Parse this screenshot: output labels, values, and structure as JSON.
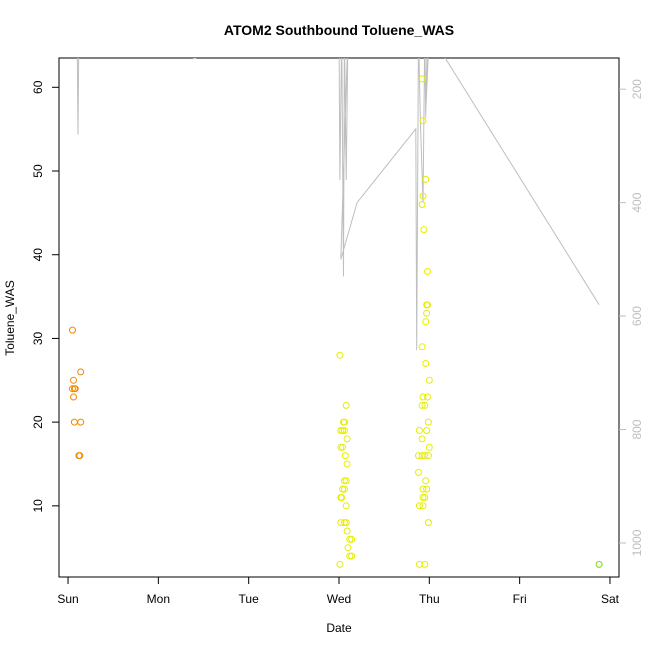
{
  "chart_data": {
    "type": "scatter",
    "title": "ATOM2 Southbound Toluene_WAS",
    "xlabel": "Date",
    "ylabel": "Toluene_WAS",
    "x_ticks": [
      "Sun",
      "Mon",
      "Tue",
      "Wed",
      "Thu",
      "Fri",
      "Sat"
    ],
    "xlim": [
      -0.1,
      6.1
    ],
    "ylim": [
      1.5,
      63.5
    ],
    "y_ticks": [
      10,
      20,
      30,
      40,
      50,
      60
    ],
    "y2_ticks": [
      200,
      400,
      600,
      800,
      1000
    ],
    "y2lim": [
      1060,
      145
    ],
    "colors": {
      "sun": "#F08A00",
      "wed_thu": "#E6EE00",
      "sat": "#76E000",
      "trace": "#BEBEBE",
      "axis": "#000000",
      "y2_text": "#BEBEBE"
    },
    "series": [
      {
        "color_key": "sun",
        "points": [
          [
            0.05,
            31
          ],
          [
            0.06,
            25
          ],
          [
            0.07,
            24
          ],
          [
            0.05,
            24
          ],
          [
            0.08,
            24
          ],
          [
            0.06,
            23
          ],
          [
            0.07,
            20
          ],
          [
            0.14,
            20
          ],
          [
            0.12,
            16
          ],
          [
            0.13,
            16
          ],
          [
            0.14,
            26
          ]
        ]
      },
      {
        "color_key": "wed_thu",
        "points": [
          [
            3.01,
            28
          ],
          [
            3.02,
            19
          ],
          [
            3.04,
            19
          ],
          [
            3.06,
            19
          ],
          [
            3.05,
            20
          ],
          [
            3.06,
            20
          ],
          [
            3.02,
            17
          ],
          [
            3.04,
            17
          ],
          [
            3.07,
            16
          ],
          [
            3.09,
            15
          ],
          [
            3.06,
            13
          ],
          [
            3.08,
            13
          ],
          [
            3.04,
            12
          ],
          [
            3.06,
            12
          ],
          [
            3.02,
            11
          ],
          [
            3.03,
            11
          ],
          [
            3.08,
            10
          ],
          [
            3.02,
            8
          ],
          [
            3.06,
            8
          ],
          [
            3.08,
            8
          ],
          [
            3.09,
            7
          ],
          [
            3.12,
            6
          ],
          [
            3.14,
            6
          ],
          [
            3.1,
            5
          ],
          [
            3.12,
            4
          ],
          [
            3.14,
            4
          ],
          [
            3.01,
            3
          ],
          [
            3.08,
            22
          ],
          [
            3.09,
            18
          ],
          [
            3.92,
            61
          ],
          [
            3.93,
            56
          ],
          [
            3.96,
            49
          ],
          [
            3.93,
            47
          ],
          [
            3.92,
            46
          ],
          [
            3.94,
            43
          ],
          [
            3.98,
            38
          ],
          [
            3.98,
            34
          ],
          [
            3.97,
            34
          ],
          [
            3.97,
            33
          ],
          [
            3.96,
            32
          ],
          [
            3.92,
            29
          ],
          [
            3.96,
            27
          ],
          [
            4.0,
            25
          ],
          [
            3.93,
            23
          ],
          [
            3.98,
            23
          ],
          [
            3.92,
            22
          ],
          [
            3.95,
            22
          ],
          [
            3.99,
            20
          ],
          [
            3.89,
            19
          ],
          [
            3.97,
            19
          ],
          [
            3.92,
            18
          ],
          [
            4.0,
            17
          ],
          [
            3.88,
            16
          ],
          [
            3.92,
            16
          ],
          [
            3.95,
            16
          ],
          [
            3.99,
            16
          ],
          [
            3.88,
            14
          ],
          [
            3.96,
            13
          ],
          [
            3.93,
            12
          ],
          [
            3.97,
            12
          ],
          [
            3.93,
            11
          ],
          [
            3.95,
            11
          ],
          [
            3.89,
            10
          ],
          [
            3.93,
            10
          ],
          [
            3.99,
            8
          ],
          [
            3.89,
            3
          ],
          [
            3.95,
            3
          ]
        ]
      },
      {
        "color_key": "sat",
        "points": [
          [
            5.88,
            3
          ]
        ]
      }
    ],
    "trace": {
      "axis": "y2",
      "points": [
        [
          0.1,
          100
        ],
        [
          0.11,
          280
        ],
        [
          0.12,
          100
        ],
        [
          1.4,
          145
        ],
        [
          3.0,
          100
        ],
        [
          3.01,
          360
        ],
        [
          3.03,
          100
        ],
        [
          3.05,
          530
        ],
        [
          3.06,
          100
        ],
        [
          3.08,
          360
        ],
        [
          3.1,
          100
        ],
        [
          3.02,
          500
        ],
        [
          3.2,
          400
        ],
        [
          3.85,
          270
        ],
        [
          3.86,
          660
        ],
        [
          3.88,
          100
        ],
        [
          3.9,
          250
        ],
        [
          3.93,
          400
        ],
        [
          3.95,
          100
        ],
        [
          3.96,
          250
        ],
        [
          3.98,
          100
        ],
        [
          3.96,
          240
        ],
        [
          4.0,
          100
        ],
        [
          5.88,
          580
        ]
      ]
    },
    "grid": false,
    "legend": "none"
  }
}
